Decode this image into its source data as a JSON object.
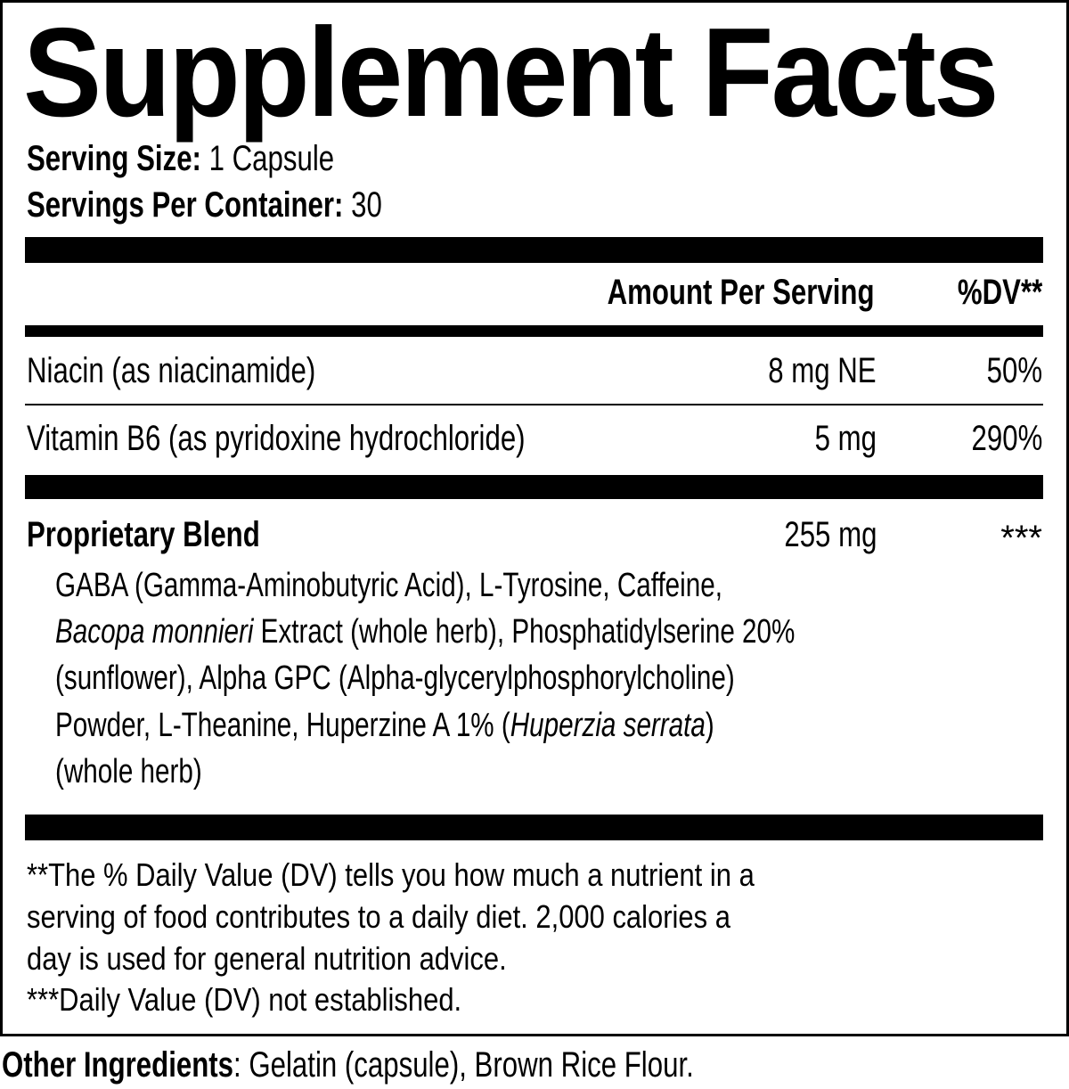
{
  "title": "Supplement Facts",
  "serving": {
    "size_label": "Serving Size:",
    "size_value": " 1 Capsule",
    "per_container_label": "Servings Per Container:",
    "per_container_value": " 30"
  },
  "header": {
    "amount": "Amount Per Serving",
    "dv": "%DV**"
  },
  "nutrients": [
    {
      "name": "Niacin (as niacinamide)",
      "amount": "8 mg NE",
      "dv": "50%"
    },
    {
      "name": "Vitamin B6 (as pyridoxine hydrochloride)",
      "amount": "5 mg",
      "dv": "290%"
    }
  ],
  "blend": {
    "name": "Proprietary Blend",
    "amount": "255 mg",
    "dv": "***",
    "lines": [
      [
        "GABA (Gamma-Aminobutyric Acid), L-Tyrosine, Caffeine,"
      ],
      [
        "Bacopa monnieri",
        " Extract (whole herb), Phosphatidylserine 20%"
      ],
      [
        "(sunflower), Alpha GPC (Alpha-glycerylphosphorylcholine)"
      ],
      [
        "Powder, L-Theanine, Huperzine A 1% (",
        "Huperzia serrata",
        ")"
      ],
      [
        "(whole herb)"
      ]
    ]
  },
  "footnotes": [
    "**The % Daily Value (DV) tells you how much a nutrient in a",
    "serving of food contributes to a daily diet. 2,000 calories a",
    "day is used for general nutrition advice.",
    "***Daily Value (DV) not established."
  ],
  "other": {
    "label": "Other Ingredients",
    "value": ": Gelatin (capsule), Brown Rice Flour."
  }
}
